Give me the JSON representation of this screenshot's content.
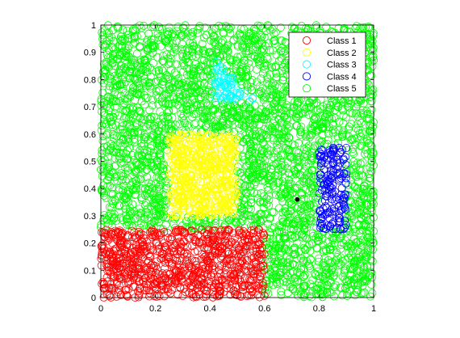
{
  "chart_data": {
    "type": "scatter",
    "title": "",
    "xlabel": "",
    "ylabel": "",
    "xlim": [
      0,
      1
    ],
    "ylim": [
      0,
      1
    ],
    "xticks": [
      "0",
      "0.2",
      "0.4",
      "0.6",
      "0.8",
      "1"
    ],
    "yticks": [
      "0",
      "0.1",
      "0.2",
      "0.3",
      "0.4",
      "0.5",
      "0.6",
      "0.7",
      "0.8",
      "0.9",
      "1"
    ],
    "grid": false,
    "legend_position": "top-right",
    "marker": "open-circle",
    "series": [
      {
        "name": "Class 1",
        "color": "#ff0000",
        "region": {
          "shape": "rectangle",
          "x": [
            0.0,
            0.6
          ],
          "y": [
            0.0,
            0.25
          ]
        },
        "approx_point_count": 900
      },
      {
        "name": "Class 2",
        "color": "#ffff00",
        "region": {
          "shape": "rectangle",
          "x": [
            0.25,
            0.5
          ],
          "y": [
            0.3,
            0.6
          ]
        },
        "approx_point_count": 550
      },
      {
        "name": "Class 3",
        "color": "#00ffff",
        "region": {
          "shape": "triangle",
          "vertices": [
            [
              0.42,
              0.87
            ],
            [
              0.41,
              0.72
            ],
            [
              0.57,
              0.72
            ]
          ]
        },
        "approx_point_count": 70
      },
      {
        "name": "Class 4",
        "color": "#0000ff",
        "region": {
          "shape": "rectangle",
          "x": [
            0.8,
            0.9
          ],
          "y": [
            0.25,
            0.55
          ]
        },
        "approx_point_count": 170
      },
      {
        "name": "Class 5",
        "color": "#00ff00",
        "region": {
          "shape": "rectangle",
          "x": [
            0.0,
            1.0
          ],
          "y": [
            0.0,
            1.0
          ],
          "excludes_other_classes": true
        },
        "approx_point_count": 3200
      }
    ],
    "annotations": [
      {
        "type": "marker",
        "x": 0.72,
        "y": 0.36,
        "color": "#000000"
      }
    ]
  }
}
